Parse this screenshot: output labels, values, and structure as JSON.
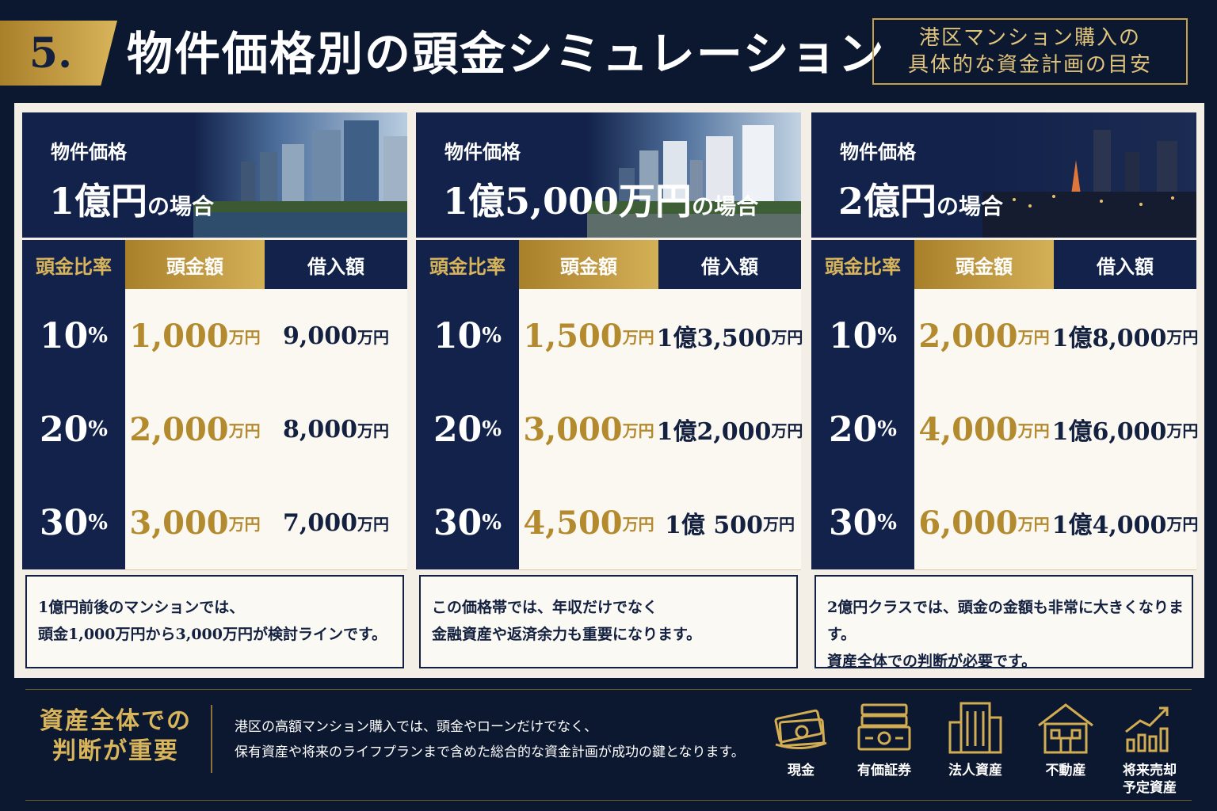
{
  "header": {
    "number": "5.",
    "title": "物件価格別の頭金シミュレーション",
    "subtitle_line1": "港区マンション購入の",
    "subtitle_line2": "具体的な資金計画の目安"
  },
  "table_headers": {
    "ratio": "頭金比率",
    "down": "頭金額",
    "loan": "借入額"
  },
  "columns": [
    {
      "label": "物件価格",
      "price": "1億円",
      "price_suffix": "の場合",
      "rows": [
        {
          "pct": "10",
          "down": "1,000",
          "loan": "9,000"
        },
        {
          "pct": "20",
          "down": "2,000",
          "loan": "8,000"
        },
        {
          "pct": "30",
          "down": "3,000",
          "loan": "7,000"
        }
      ],
      "note1": "1億円前後のマンションでは、",
      "note2": "頭金1,000万円から3,000万円が検討ラインです。"
    },
    {
      "label": "物件価格",
      "price": "1億5,000万円",
      "price_suffix": "の場合",
      "rows": [
        {
          "pct": "10",
          "down": "1,500",
          "loan": "1億3,500"
        },
        {
          "pct": "20",
          "down": "3,000",
          "loan": "1億2,000"
        },
        {
          "pct": "30",
          "down": "4,500",
          "loan": "1億 500"
        }
      ],
      "note1": "この価格帯では、年収だけでなく",
      "note2": "金融資産や返済余力も重要になります。"
    },
    {
      "label": "物件価格",
      "price": "2億円",
      "price_suffix": "の場合",
      "rows": [
        {
          "pct": "10",
          "down": "2,000",
          "loan": "1億8,000"
        },
        {
          "pct": "20",
          "down": "4,000",
          "loan": "1億6,000"
        },
        {
          "pct": "30",
          "down": "6,000",
          "loan": "1億4,000"
        }
      ],
      "note1": "2億円クラスでは、頭金の金額も非常に大きくなります。",
      "note2": "資産全体での判断が必要です。"
    }
  ],
  "units": {
    "pct": "%",
    "yen": "万円"
  },
  "footer": {
    "title_line1": "資産全体での",
    "title_line2": "判断が重要",
    "text_line1": "港区の高額マンション購入では、頭金やローンだけでなく、",
    "text_line2": "保有資産や将来のライフプランまで含めた総合的な資金計画が成功の鍵となります。",
    "assets": [
      {
        "icon": "cash-icon",
        "label": "現金"
      },
      {
        "icon": "securities-icon",
        "label": "有価証券"
      },
      {
        "icon": "corporate-building-icon",
        "label": "法人資産"
      },
      {
        "icon": "real-estate-house-icon",
        "label": "不動産"
      },
      {
        "icon": "growth-chart-icon",
        "label_line1": "将来売却",
        "label_line2": "予定資産"
      }
    ]
  },
  "colors": {
    "navy": "#12224a",
    "gold": "#b48a2e",
    "cream": "#fbf8f1"
  }
}
